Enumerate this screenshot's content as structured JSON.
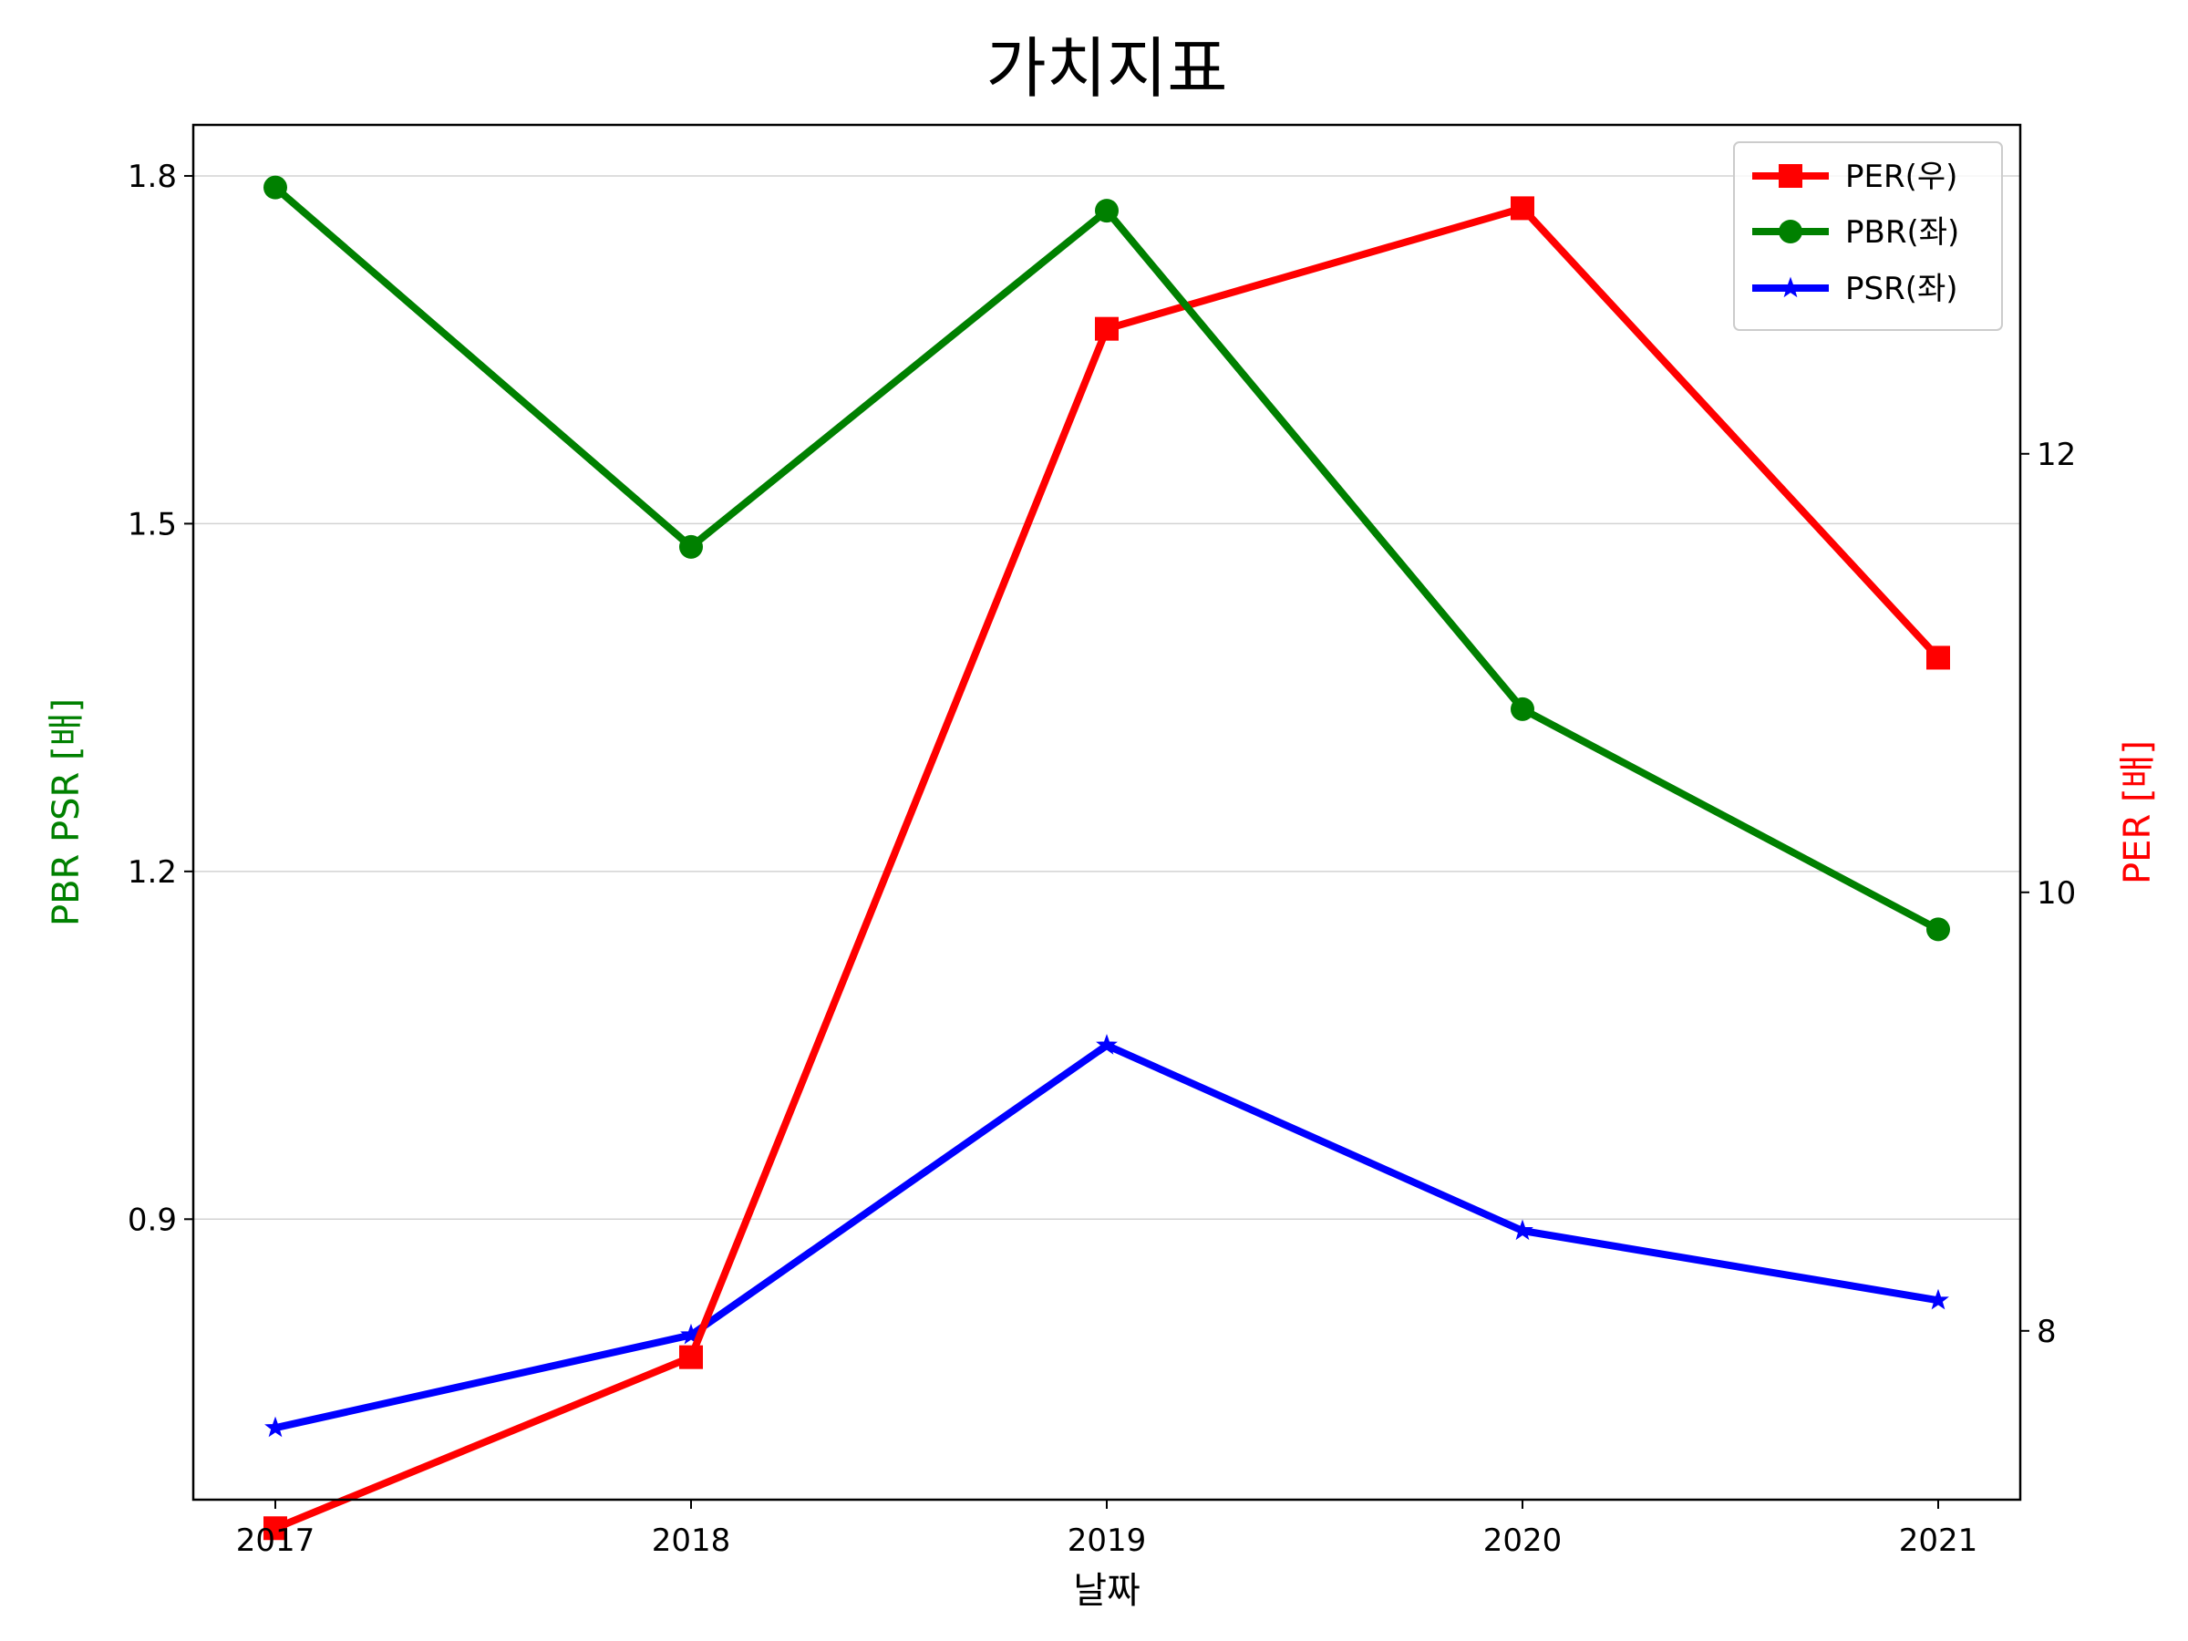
{
  "chart_data": {
    "type": "line",
    "title": "가치지표",
    "xlabel": "날짜",
    "ylabel_left": "PBR PSR [배]",
    "ylabel_right": "PER [배]",
    "ylabel_left_color": "#008000",
    "ylabel_right_color": "#ff0000",
    "categories": [
      "2017",
      "2018",
      "2019",
      "2020",
      "2021"
    ],
    "ylim_left": [
      0.658,
      1.844
    ],
    "ylim_right": [
      7.23,
      13.5
    ],
    "yticks_left": [
      0.9,
      1.2,
      1.5,
      1.8
    ],
    "yticks_right": [
      8,
      10,
      12
    ],
    "grid": "horizontal (left axis)",
    "legend_position": "top-right",
    "series": [
      {
        "name": "PER(우)",
        "axis": "right",
        "color": "#ff0000",
        "marker": "square",
        "values": [
          7.1,
          7.88,
          12.57,
          13.12,
          11.07
        ]
      },
      {
        "name": "PBR(좌)",
        "axis": "left",
        "color": "#008000",
        "marker": "circle",
        "values": [
          1.79,
          1.48,
          1.77,
          1.34,
          1.15
        ]
      },
      {
        "name": "PSR(좌)",
        "axis": "left",
        "color": "#0000ff",
        "marker": "star",
        "values": [
          0.72,
          0.8,
          1.05,
          0.89,
          0.83
        ]
      }
    ]
  }
}
